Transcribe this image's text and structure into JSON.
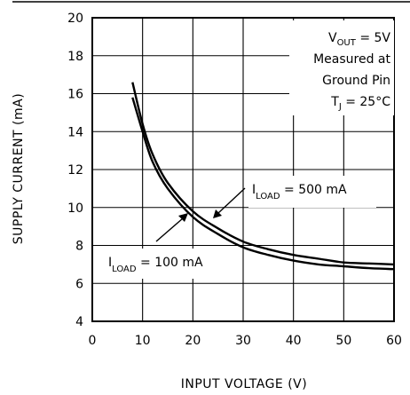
{
  "chart_data": {
    "type": "line",
    "xlabel": "INPUT VOLTAGE (V)",
    "ylabel": "SUPPLY CURRENT (mA)",
    "xlim": [
      0,
      60
    ],
    "ylim": [
      4,
      20
    ],
    "x_ticks": [
      0,
      10,
      20,
      30,
      40,
      50,
      60
    ],
    "y_ticks": [
      4,
      6,
      8,
      10,
      12,
      14,
      16,
      18,
      20
    ],
    "grid": true,
    "annotation": {
      "lines": [
        {
          "main": "V",
          "sub": "OUT",
          "rest": " = 5V"
        },
        {
          "main": "Measured at",
          "sub": "",
          "rest": ""
        },
        {
          "main": "Ground Pin",
          "sub": "",
          "rest": ""
        },
        {
          "main": "T",
          "sub": "J",
          "rest": " = 25°C"
        }
      ]
    },
    "series": [
      {
        "label_main": "I",
        "label_sub": "LOAD",
        "label_rest": " = 500 mA",
        "x": [
          8,
          10,
          12,
          15,
          20,
          25,
          30,
          35,
          40,
          45,
          50,
          55,
          60
        ],
        "y": [
          16.6,
          14.4,
          12.8,
          11.3,
          9.8,
          8.9,
          8.2,
          7.8,
          7.5,
          7.3,
          7.1,
          7.05,
          7.0
        ]
      },
      {
        "label_main": "I",
        "label_sub": "LOAD",
        "label_rest": " = 100 mA",
        "x": [
          8,
          10,
          12,
          15,
          20,
          25,
          30,
          35,
          40,
          45,
          50,
          55,
          60
        ],
        "y": [
          15.8,
          14.0,
          12.4,
          11.0,
          9.5,
          8.6,
          7.9,
          7.5,
          7.2,
          7.0,
          6.9,
          6.8,
          6.75
        ]
      }
    ]
  }
}
